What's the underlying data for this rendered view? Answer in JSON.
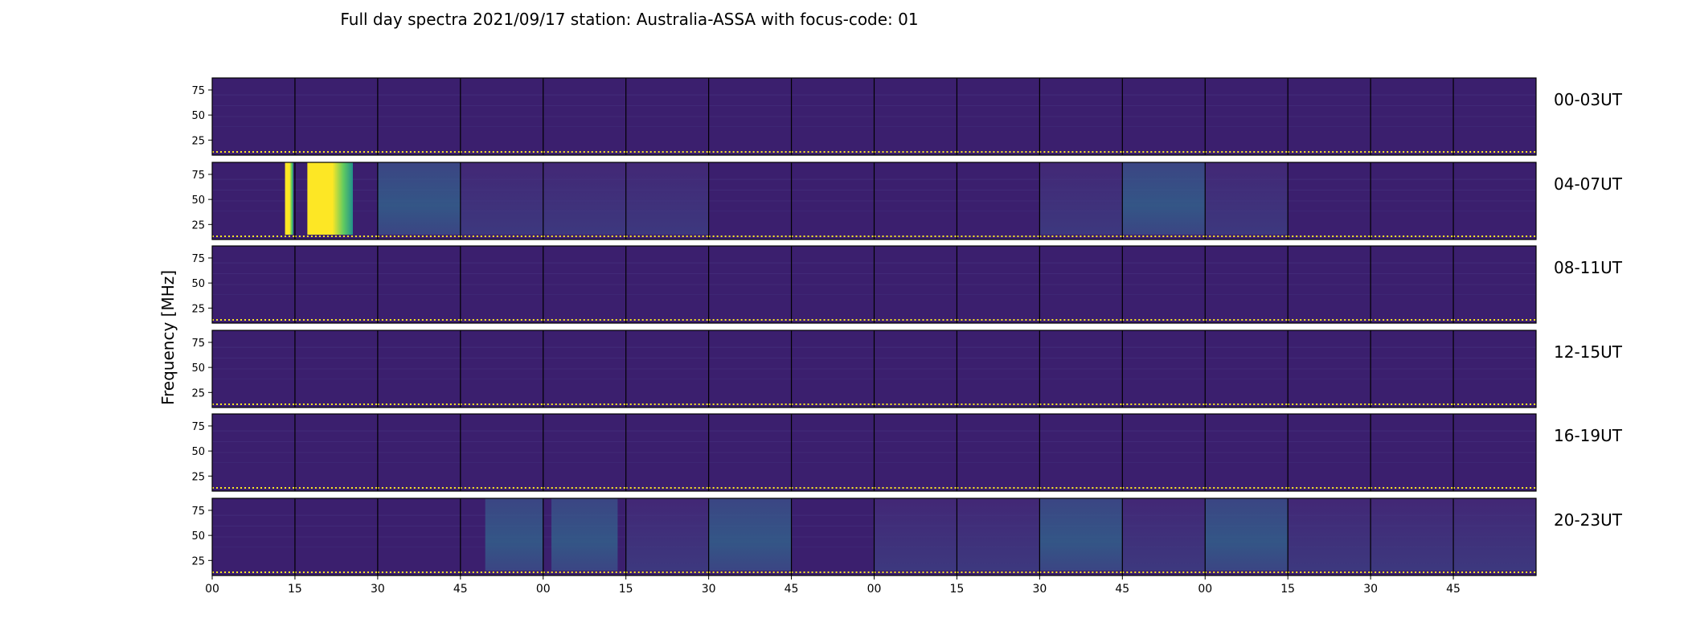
{
  "chart_data": {
    "type": "heatmap",
    "title": "Full day spectra 2021/09/17 station: Australia-ASSA with focus-code: 01",
    "ylabel": "Frequency [MHz]",
    "xlabel": "",
    "x_ticks": [
      "00",
      "15",
      "30",
      "45",
      "00",
      "15",
      "30",
      "45",
      "00",
      "15",
      "30",
      "45",
      "00",
      "15",
      "30",
      "45"
    ],
    "y_ticks": [
      25,
      50,
      75
    ],
    "ylim": [
      10,
      87
    ],
    "rows": [
      {
        "label": "00-03UT",
        "hours": [
          0,
          1,
          2,
          3
        ]
      },
      {
        "label": "04-07UT",
        "hours": [
          4,
          5,
          6,
          7
        ]
      },
      {
        "label": "08-11UT",
        "hours": [
          8,
          9,
          10,
          11
        ]
      },
      {
        "label": "12-15UT",
        "hours": [
          12,
          13,
          14,
          15
        ]
      },
      {
        "label": "16-19UT",
        "hours": [
          16,
          17,
          18,
          19
        ]
      },
      {
        "label": "20-23UT",
        "hours": [
          20,
          21,
          22,
          23
        ]
      }
    ],
    "panels_per_row": 16,
    "panel_minutes": 15,
    "colormap": [
      "#440154",
      "#3b528b",
      "#21918c",
      "#5ec962",
      "#fde725"
    ],
    "background_color": "#3b1f6e",
    "events": [
      {
        "row": 1,
        "panel": 0,
        "from": 0.88,
        "to": 0.98,
        "level": "high"
      },
      {
        "row": 1,
        "panel": 1,
        "from": 0.15,
        "to": 0.7,
        "level": "high"
      },
      {
        "row": 1,
        "panel": 2,
        "from": 0.0,
        "to": 1.0,
        "level": "medium"
      },
      {
        "row": 1,
        "panel": 3,
        "from": 0.0,
        "to": 1.0,
        "level": "low"
      },
      {
        "row": 1,
        "panel": 4,
        "from": 0.0,
        "to": 1.0,
        "level": "low"
      },
      {
        "row": 1,
        "panel": 5,
        "from": 0.0,
        "to": 1.0,
        "level": "low"
      },
      {
        "row": 1,
        "panel": 10,
        "from": 0.0,
        "to": 1.0,
        "level": "low"
      },
      {
        "row": 1,
        "panel": 11,
        "from": 0.0,
        "to": 1.0,
        "level": "medium"
      },
      {
        "row": 1,
        "panel": 12,
        "from": 0.0,
        "to": 1.0,
        "level": "low"
      },
      {
        "row": 5,
        "panel": 3,
        "from": 0.3,
        "to": 1.0,
        "level": "medium"
      },
      {
        "row": 5,
        "panel": 4,
        "from": 0.1,
        "to": 0.9,
        "level": "medium"
      },
      {
        "row": 5,
        "panel": 5,
        "from": 0.0,
        "to": 1.0,
        "level": "low"
      },
      {
        "row": 5,
        "panel": 6,
        "from": 0.0,
        "to": 1.0,
        "level": "medium"
      },
      {
        "row": 5,
        "panel": 8,
        "from": 0.0,
        "to": 1.0,
        "level": "low"
      },
      {
        "row": 5,
        "panel": 9,
        "from": 0.0,
        "to": 1.0,
        "level": "low"
      },
      {
        "row": 5,
        "panel": 10,
        "from": 0.0,
        "to": 1.0,
        "level": "medium"
      },
      {
        "row": 5,
        "panel": 11,
        "from": 0.0,
        "to": 1.0,
        "level": "low"
      },
      {
        "row": 5,
        "panel": 12,
        "from": 0.0,
        "to": 1.0,
        "level": "medium"
      },
      {
        "row": 5,
        "panel": 13,
        "from": 0.0,
        "to": 1.0,
        "level": "low"
      },
      {
        "row": 5,
        "panel": 14,
        "from": 0.0,
        "to": 1.0,
        "level": "low"
      },
      {
        "row": 5,
        "panel": 15,
        "from": 0.0,
        "to": 1.0,
        "level": "low"
      }
    ]
  }
}
